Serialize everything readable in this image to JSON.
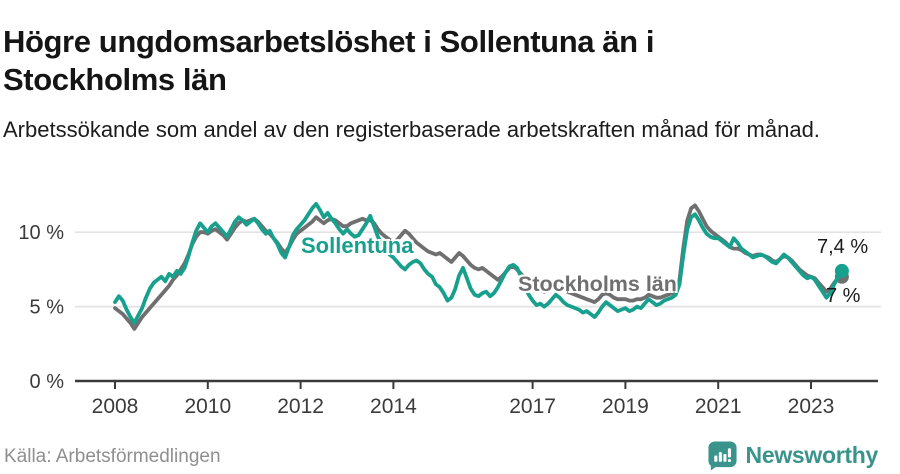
{
  "header": {
    "title": "Högre ungdomsarbetslöshet i Sollentuna än i Stockholms län",
    "subtitle": "Arbetssökande som andel av den registerbaserade arbetskraften månad för månad."
  },
  "footer": {
    "source": "Källa: Arbetsförmedlingen",
    "brand": "Newsworthy",
    "brand_color": "#3b948c"
  },
  "chart_data": {
    "type": "line",
    "title": "Högre ungdomsarbetslöshet i Sollentuna än i Stockholms län",
    "subtitle": "Arbetssökande som andel av den registerbaserade arbetskraften månad för månad.",
    "unit": "%",
    "frequency": "monthly",
    "x_axis": {
      "ticks": [
        2008,
        2010,
        2012,
        2014,
        2017,
        2019,
        2021,
        2023
      ],
      "range_years": [
        2007.1,
        2024.4
      ]
    },
    "y_axis": {
      "ticks": [
        {
          "value": 0,
          "label": "0 %"
        },
        {
          "value": 5,
          "label": "5 %"
        },
        {
          "value": 10,
          "label": "10 %"
        }
      ],
      "range": [
        0,
        13
      ]
    },
    "grid": "horizontal-only",
    "legend_position": "inline-labels",
    "colors": {
      "grid": "#e3e3e3",
      "axis": "#3a3a3a"
    },
    "series": [
      {
        "id": "sollentuna",
        "label": "Sollentuna",
        "color": "#17a08e",
        "start_year": 2008,
        "start_month": 1,
        "end_label": "7,4 %",
        "end_value": 7.4,
        "values": [
          5.3,
          5.7,
          5.4,
          4.8,
          4.3,
          3.9,
          4.4,
          4.9,
          5.6,
          6.2,
          6.6,
          6.8,
          7.0,
          6.7,
          7.2,
          7.0,
          7.4,
          7.2,
          7.6,
          8.4,
          9.3,
          10.1,
          10.6,
          10.3,
          10.0,
          10.4,
          10.6,
          10.3,
          10.0,
          9.7,
          10.2,
          10.7,
          11.0,
          10.8,
          10.5,
          10.7,
          10.9,
          10.6,
          10.2,
          9.9,
          10.1,
          9.6,
          9.2,
          8.6,
          8.3,
          9.0,
          9.8,
          10.2,
          10.5,
          10.8,
          11.2,
          11.6,
          11.9,
          11.5,
          11.0,
          11.3,
          10.9,
          10.6,
          10.2,
          9.9,
          10.2,
          9.9,
          9.7,
          9.8,
          10.2,
          10.6,
          11.1,
          10.4,
          9.7,
          9.2,
          8.8,
          8.5,
          8.3,
          8.0,
          7.7,
          7.5,
          7.8,
          8.0,
          8.1,
          7.9,
          7.5,
          7.2,
          7.0,
          6.5,
          6.3,
          5.9,
          5.4,
          5.6,
          6.2,
          7.1,
          7.6,
          6.9,
          6.2,
          5.8,
          5.7,
          5.9,
          6.0,
          5.7,
          5.9,
          6.3,
          6.8,
          7.3,
          7.7,
          7.8,
          7.6,
          7.0,
          6.4,
          5.8,
          5.4,
          5.1,
          5.2,
          5.0,
          5.2,
          5.5,
          5.8,
          5.6,
          5.3,
          5.1,
          5.0,
          4.9,
          4.8,
          4.6,
          4.7,
          4.5,
          4.3,
          4.6,
          5.0,
          5.3,
          5.1,
          4.9,
          4.7,
          4.8,
          4.9,
          4.7,
          4.8,
          5.0,
          4.9,
          5.2,
          5.5,
          5.3,
          5.1,
          5.2,
          5.4,
          5.5,
          5.6,
          5.8,
          6.5,
          8.5,
          10.2,
          11.0,
          11.2,
          10.8,
          10.3,
          9.9,
          9.7,
          9.6,
          9.6,
          9.4,
          9.2,
          9.0,
          9.6,
          9.3,
          8.9,
          8.7,
          8.5,
          8.3,
          8.4,
          8.5,
          8.4,
          8.2,
          8.0,
          7.9,
          8.2,
          8.5,
          8.3,
          8.0,
          7.7,
          7.4,
          7.1,
          6.9,
          7.0,
          6.8,
          6.4,
          6.0,
          5.6,
          5.9,
          6.5,
          7.0,
          7.4
        ]
      },
      {
        "id": "stockholms-lan",
        "label": "Stockholms län",
        "color": "#6f6f6f",
        "start_year": 2008,
        "start_month": 1,
        "end_label": "7 %",
        "end_value": 7.0,
        "values": [
          4.9,
          4.7,
          4.5,
          4.2,
          3.9,
          3.5,
          3.9,
          4.3,
          4.6,
          4.9,
          5.2,
          5.5,
          5.8,
          6.1,
          6.4,
          6.8,
          7.1,
          7.5,
          7.9,
          8.5,
          9.2,
          9.7,
          10.0,
          10.0,
          9.9,
          10.1,
          10.2,
          10.0,
          9.8,
          9.5,
          9.9,
          10.3,
          10.6,
          10.8,
          10.7,
          10.8,
          10.9,
          10.7,
          10.4,
          10.1,
          9.9,
          9.6,
          9.3,
          8.9,
          8.6,
          9.0,
          9.5,
          9.9,
          10.1,
          10.3,
          10.5,
          10.7,
          11.0,
          10.8,
          10.6,
          10.8,
          10.9,
          10.8,
          10.6,
          10.4,
          10.4,
          10.6,
          10.7,
          10.8,
          10.9,
          10.8,
          10.8,
          10.6,
          10.2,
          9.9,
          9.7,
          9.5,
          9.3,
          9.5,
          9.8,
          10.1,
          9.9,
          9.6,
          9.3,
          9.1,
          8.9,
          8.7,
          8.6,
          8.5,
          8.6,
          8.4,
          8.2,
          8.0,
          8.3,
          8.6,
          8.4,
          8.1,
          7.8,
          7.6,
          7.5,
          7.6,
          7.4,
          7.2,
          7.0,
          6.8,
          7.0,
          7.3,
          7.6,
          7.7,
          7.5,
          7.2,
          6.9,
          6.6,
          6.4,
          6.2,
          6.1,
          6.0,
          6.1,
          6.3,
          6.5,
          6.4,
          6.2,
          6.0,
          5.9,
          5.8,
          5.7,
          5.6,
          5.5,
          5.4,
          5.3,
          5.5,
          5.8,
          5.9,
          5.8,
          5.6,
          5.5,
          5.5,
          5.5,
          5.4,
          5.4,
          5.5,
          5.5,
          5.6,
          5.8,
          5.7,
          5.6,
          5.6,
          5.7,
          5.8,
          5.9,
          6.0,
          6.8,
          9.0,
          10.8,
          11.6,
          11.8,
          11.4,
          10.9,
          10.4,
          10.1,
          9.9,
          9.7,
          9.5,
          9.3,
          9.0,
          8.9,
          8.9,
          8.8,
          8.6,
          8.5,
          8.4,
          8.5,
          8.5,
          8.4,
          8.3,
          8.1,
          8.0,
          8.2,
          8.4,
          8.3,
          8.1,
          7.8,
          7.5,
          7.3,
          7.1,
          7.0,
          6.9,
          6.6,
          6.3,
          6.0,
          6.2,
          6.6,
          6.9,
          7.0
        ]
      }
    ]
  }
}
